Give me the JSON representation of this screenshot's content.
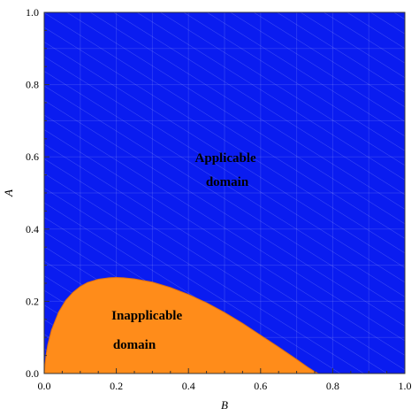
{
  "chart_data": {
    "type": "area",
    "title": "",
    "xlabel": "B",
    "ylabel": "A",
    "xlim": [
      0,
      1
    ],
    "ylim": [
      0,
      1
    ],
    "xticks": [
      "0.0",
      "0.2",
      "0.4",
      "0.6",
      "0.8",
      "1.0"
    ],
    "yticks": [
      "0.0",
      "0.2",
      "0.4",
      "0.6",
      "0.8",
      "1.0"
    ],
    "grid": false,
    "regions": [
      {
        "name": "Applicable domain",
        "label_lines": [
          "Applicable",
          "domain"
        ],
        "color": "#0a1cf0"
      },
      {
        "name": "Inapplicable domain",
        "label_lines": [
          "Inapplicable",
          "domain"
        ],
        "color": "#ff8c1a"
      }
    ],
    "boundary": {
      "x": [
        0.0,
        0.005,
        0.01,
        0.02,
        0.04,
        0.06,
        0.08,
        0.1,
        0.12,
        0.15,
        0.18,
        0.2,
        0.22,
        0.25,
        0.3,
        0.35,
        0.4,
        0.45,
        0.5,
        0.55,
        0.6,
        0.65,
        0.7,
        0.73,
        0.75,
        0.76
      ],
      "y": [
        0.0,
        0.05,
        0.08,
        0.12,
        0.17,
        0.203,
        0.225,
        0.241,
        0.252,
        0.261,
        0.265,
        0.266,
        0.265,
        0.262,
        0.253,
        0.238,
        0.219,
        0.196,
        0.169,
        0.139,
        0.106,
        0.073,
        0.039,
        0.018,
        0.005,
        0.0
      ]
    }
  }
}
